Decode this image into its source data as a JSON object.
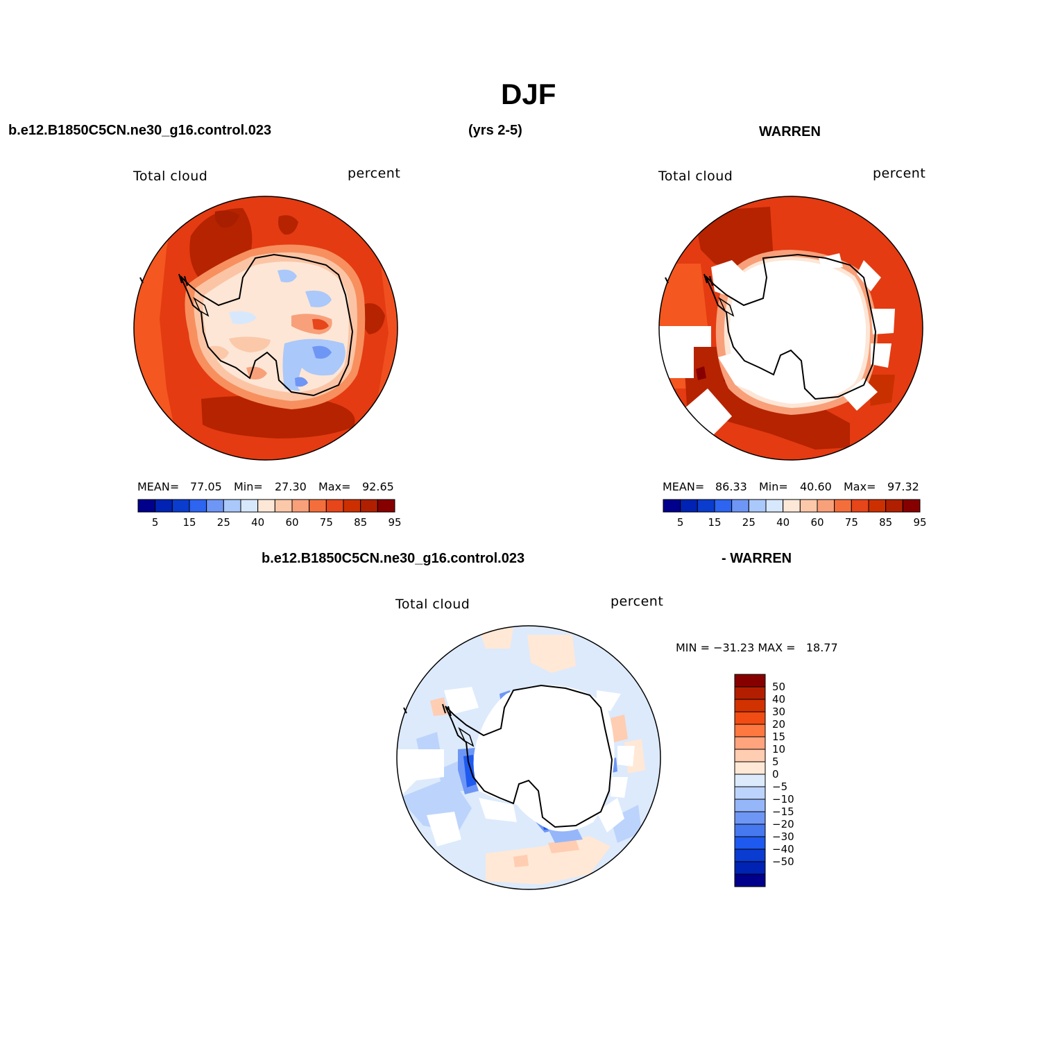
{
  "figure": {
    "title": "DJF",
    "case_name": "b.e12.B1850C5CN.ne30_g16.control.023",
    "years": "(yrs 2-5)",
    "obs_name": "WARREN",
    "diff_case": "b.e12.B1850C5CN.ne30_g16.control.023",
    "diff_obs": "- WARREN"
  },
  "panels": {
    "model": {
      "var_label": "Total cloud",
      "units": "percent",
      "mean_label": "MEAN=",
      "mean": "77.05",
      "min_label": "Min=",
      "min": "27.30",
      "max_label": "Max=",
      "max": "92.65"
    },
    "obs": {
      "var_label": "Total cloud",
      "units": "percent",
      "mean_label": "MEAN=",
      "mean": "86.33",
      "min_label": "Min=",
      "min": "40.60",
      "max_label": "Max=",
      "max": "97.32"
    },
    "diff": {
      "var_label": "Total cloud",
      "units": "percent",
      "minmax_text": "MIN = −31.23 MAX =   18.77"
    }
  },
  "colorbars": {
    "horizontal": {
      "colors": [
        "#00008c",
        "#0023b4",
        "#0a3ccd",
        "#2d64f0",
        "#6e96f5",
        "#aac8fa",
        "#d7e8fc",
        "#fde8d8",
        "#fbc8aa",
        "#f8a07a",
        "#f46e3c",
        "#e6461a",
        "#cc3000",
        "#b02000",
        "#870000"
      ],
      "tick_labels": [
        "5",
        "15",
        "25",
        "40",
        "60",
        "75",
        "85",
        "95"
      ],
      "tick_positions": [
        1,
        3,
        5,
        7,
        9,
        11,
        13,
        15
      ]
    },
    "vertical": {
      "colors": [
        "#870000",
        "#b41e00",
        "#d23200",
        "#f04c14",
        "#ff7840",
        "#ffa47c",
        "#ffcdb2",
        "#ffe8d6",
        "#dceafc",
        "#bcd4fc",
        "#96b6fa",
        "#6e96f5",
        "#4678f0",
        "#1e5af0",
        "#0a3cd2",
        "#0023b4",
        "#00008c"
      ],
      "tick_labels": [
        "50",
        "40",
        "30",
        "20",
        "15",
        "10",
        "5",
        "0",
        "−5",
        "−10",
        "−15",
        "−20",
        "−30",
        "−40",
        "−50"
      ]
    }
  }
}
